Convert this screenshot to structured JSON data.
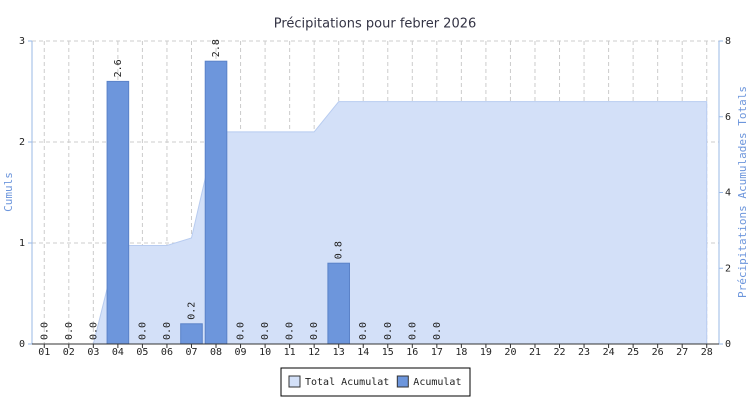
{
  "chart_data": {
    "type": "bar",
    "title": "Précipitations pour febrer 2026",
    "y_label": "Cumuls",
    "y2_label": "Précipitations Acumulades Totals",
    "categories": [
      "01",
      "02",
      "03",
      "04",
      "05",
      "06",
      "07",
      "08",
      "09",
      "10",
      "11",
      "12",
      "13",
      "14",
      "15",
      "16",
      "17",
      "18",
      "19",
      "20",
      "21",
      "22",
      "23",
      "24",
      "25",
      "26",
      "27",
      "28"
    ],
    "series": [
      {
        "name": "Total Acumulat",
        "type": "area",
        "axis": "y2",
        "color": "#d3e0f8",
        "edge": "#b8ccf0",
        "values": [
          0,
          0,
          0,
          2.6,
          2.6,
          2.6,
          2.8,
          5.6,
          5.6,
          5.6,
          5.6,
          5.6,
          6.4,
          6.4,
          6.4,
          6.4,
          6.4,
          6.4,
          6.4,
          6.4,
          6.4,
          6.4,
          6.4,
          6.4,
          6.4,
          6.4,
          6.4,
          6.4
        ]
      },
      {
        "name": "Acumulat",
        "type": "bar",
        "color": "#6d96dc",
        "edge": "#5a82c8",
        "values": [
          0,
          0,
          0,
          2.6,
          0,
          0,
          0.2,
          2.8,
          0,
          0,
          0,
          0,
          0.8,
          0,
          0,
          0,
          0,
          null,
          null,
          null,
          null,
          null,
          null,
          null,
          null,
          null,
          null,
          null
        ],
        "value_labels": [
          "0.0",
          "0.0",
          "0.0",
          "2.6",
          "0.0",
          "0.0",
          "0.2",
          "2.8",
          "0.0",
          "0.0",
          "0.0",
          "0.0",
          "0.8",
          "0.0",
          "0.0",
          "0.0",
          "0.0",
          null,
          null,
          null,
          null,
          null,
          null,
          null,
          null,
          null,
          null,
          null
        ]
      }
    ],
    "ylim": [
      0,
      3
    ],
    "yticks": [
      0,
      1,
      2,
      3
    ],
    "y2lim": [
      0,
      8
    ],
    "y2ticks": [
      0,
      2,
      4,
      6,
      8
    ],
    "grid": true,
    "legend": "bottom"
  }
}
